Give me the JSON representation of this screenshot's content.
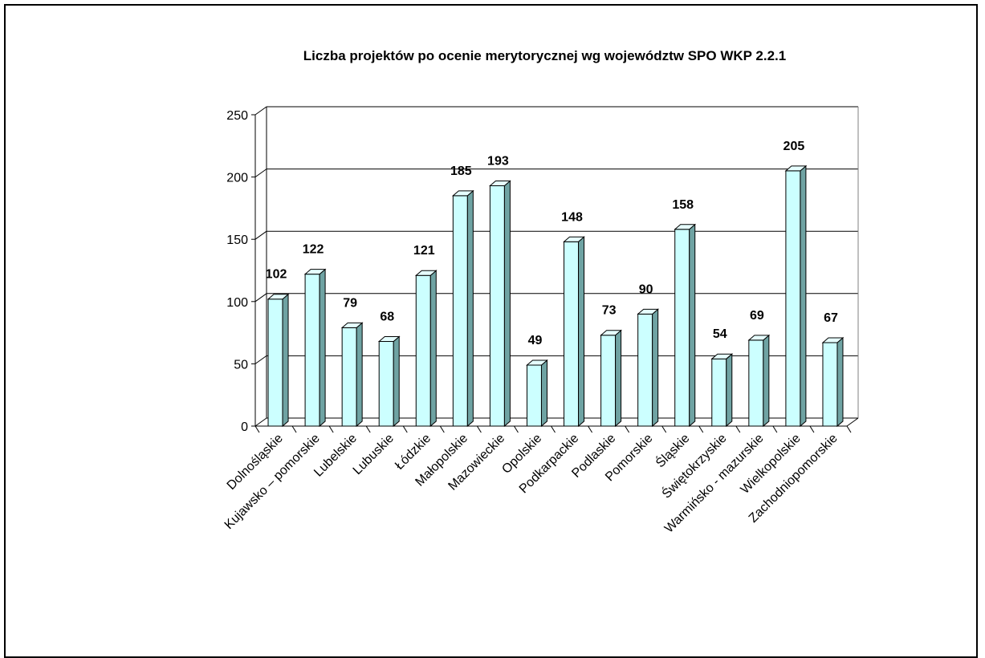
{
  "chart_data": {
    "type": "bar",
    "title": "Liczba projektów po ocenie merytorycznej wg województw SPO WKP 2.2.1",
    "xlabel": "",
    "ylabel": "",
    "ylim": [
      0,
      250
    ],
    "yticks": [
      "0",
      "50",
      "100",
      "150",
      "200",
      "250"
    ],
    "grid": true,
    "legend": "none",
    "categories": [
      "Dolnośląskie",
      "Kujawsko – pomorskie",
      "Lubelskie",
      "Lubuskie",
      "Łódzkie",
      "Małopolskie",
      "Mazowieckie",
      "Opolskie",
      "Podkarpackie",
      "Podlaskie",
      "Pomorskie",
      "Śląskie",
      "Świętokrzyskie",
      "Warmińsko - mazurskie",
      "Wielkopolskie",
      "Zachodniopomorskie"
    ],
    "values": [
      102,
      122,
      79,
      68,
      121,
      185,
      193,
      49,
      148,
      73,
      90,
      158,
      54,
      69,
      205,
      67
    ],
    "colors": {
      "bar_front": "#ccffff",
      "bar_side": "#6fa3a3",
      "bar_top": "#e6ffff",
      "outline": "#000000"
    }
  }
}
